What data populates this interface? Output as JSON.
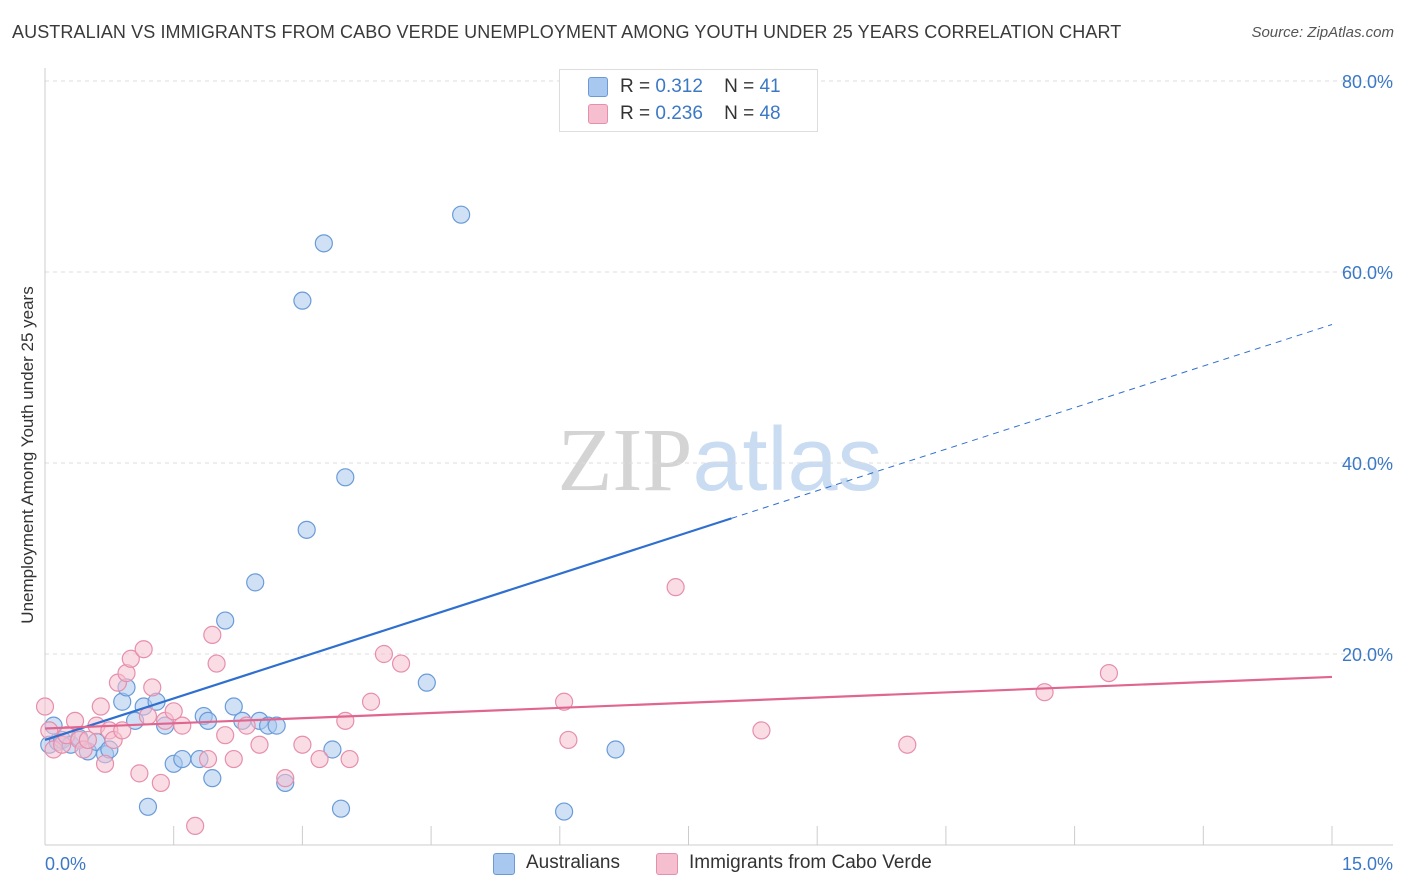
{
  "chart_data": {
    "type": "scatter",
    "title": "AUSTRALIAN VS IMMIGRANTS FROM CABO VERDE UNEMPLOYMENT AMONG YOUTH UNDER 25 YEARS CORRELATION CHART",
    "source": "Source: ZipAtlas.com",
    "xlabel": "",
    "ylabel": "Unemployment Among Youth under 25 years",
    "xlim": [
      0,
      15
    ],
    "ylim": [
      0,
      80
    ],
    "x_tick_labels": {
      "left": "0.0%",
      "right": "15.0%"
    },
    "y_ticks": [
      20,
      40,
      60,
      80
    ],
    "y_tick_labels": [
      "20.0%",
      "40.0%",
      "60.0%",
      "80.0%"
    ],
    "watermark": "ZIPatlas",
    "colors": {
      "blue_fill": "#a9c8ef",
      "blue_stroke": "#6a9bd8",
      "blue_line": "#2f6fcf",
      "pink_fill": "#f6bfd0",
      "pink_stroke": "#e68fac",
      "pink_line": "#e06690",
      "grid": "#dddddd",
      "tick_label": "#3b78c6"
    },
    "legend": [
      {
        "r_label": "R =",
        "r_value": "0.312",
        "n_label": "N =",
        "n_value": "41"
      },
      {
        "r_label": "R =",
        "r_value": "0.236",
        "n_label": "N =",
        "n_value": "48"
      }
    ],
    "series": [
      {
        "name": "Australians",
        "points": [
          [
            0.05,
            10.5
          ],
          [
            0.1,
            12.5
          ],
          [
            0.15,
            10.8
          ],
          [
            0.2,
            11
          ],
          [
            0.3,
            10.5
          ],
          [
            0.4,
            11.2
          ],
          [
            0.5,
            9.8
          ],
          [
            0.6,
            10.8
          ],
          [
            0.7,
            9.5
          ],
          [
            0.75,
            10
          ],
          [
            0.9,
            15
          ],
          [
            0.95,
            16.5
          ],
          [
            1.05,
            13
          ],
          [
            1.15,
            14.5
          ],
          [
            1.2,
            4
          ],
          [
            1.3,
            15
          ],
          [
            1.4,
            12.5
          ],
          [
            1.5,
            8.5
          ],
          [
            1.6,
            9
          ],
          [
            1.8,
            9
          ],
          [
            1.85,
            13.5
          ],
          [
            1.9,
            13
          ],
          [
            1.95,
            7
          ],
          [
            2.1,
            23.5
          ],
          [
            2.2,
            14.5
          ],
          [
            2.3,
            13
          ],
          [
            2.45,
            27.5
          ],
          [
            2.5,
            13
          ],
          [
            2.6,
            12.5
          ],
          [
            2.7,
            12.5
          ],
          [
            2.8,
            6.5
          ],
          [
            3.0,
            57
          ],
          [
            3.05,
            33
          ],
          [
            3.25,
            63
          ],
          [
            3.35,
            10
          ],
          [
            3.45,
            3.8
          ],
          [
            3.5,
            38.5
          ],
          [
            4.45,
            17
          ],
          [
            4.85,
            66
          ],
          [
            6.05,
            3.5
          ],
          [
            6.65,
            10
          ]
        ],
        "trend": {
          "x0": 0.0,
          "y0": 11.0,
          "x1": 8.0,
          "y1": 34.2,
          "dashed_x1": 15.0,
          "dashed_y1": 54.5
        }
      },
      {
        "name": "Immigrants from Cabo Verde",
        "points": [
          [
            0.0,
            14.5
          ],
          [
            0.05,
            12
          ],
          [
            0.1,
            10
          ],
          [
            0.2,
            10.5
          ],
          [
            0.25,
            11.5
          ],
          [
            0.35,
            13
          ],
          [
            0.4,
            11
          ],
          [
            0.45,
            10
          ],
          [
            0.5,
            11
          ],
          [
            0.6,
            12.5
          ],
          [
            0.65,
            14.5
          ],
          [
            0.7,
            8.5
          ],
          [
            0.75,
            12
          ],
          [
            0.8,
            11
          ],
          [
            0.85,
            17
          ],
          [
            0.9,
            12
          ],
          [
            0.95,
            18
          ],
          [
            1.0,
            19.5
          ],
          [
            1.1,
            7.5
          ],
          [
            1.15,
            20.5
          ],
          [
            1.2,
            13.5
          ],
          [
            1.25,
            16.5
          ],
          [
            1.35,
            6.5
          ],
          [
            1.4,
            13
          ],
          [
            1.5,
            14
          ],
          [
            1.6,
            12.5
          ],
          [
            1.75,
            2
          ],
          [
            1.9,
            9
          ],
          [
            1.95,
            22
          ],
          [
            2.0,
            19
          ],
          [
            2.1,
            11.5
          ],
          [
            2.2,
            9
          ],
          [
            2.35,
            12.5
          ],
          [
            2.5,
            10.5
          ],
          [
            2.8,
            7
          ],
          [
            3.0,
            10.5
          ],
          [
            3.2,
            9
          ],
          [
            3.5,
            13
          ],
          [
            3.55,
            9
          ],
          [
            3.8,
            15
          ],
          [
            3.95,
            20
          ],
          [
            4.15,
            19
          ],
          [
            6.05,
            15
          ],
          [
            6.1,
            11
          ],
          [
            7.35,
            27
          ],
          [
            8.35,
            12
          ],
          [
            10.05,
            10.5
          ],
          [
            11.65,
            16
          ],
          [
            12.4,
            18
          ]
        ],
        "trend": {
          "x0": 0.0,
          "y0": 12.2,
          "x1": 15.0,
          "y1": 17.6
        }
      }
    ]
  }
}
